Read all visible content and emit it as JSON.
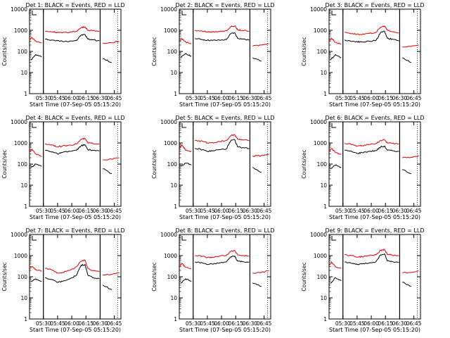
{
  "chart_data": [
    {
      "type": "line",
      "title": "Det 1: BLACK = Events, RED = LLD",
      "xlabel": "Start Time (07-Sep-05 05:15:20)",
      "ylabel": "Counts/sec",
      "yscale": "log",
      "ylim": [
        1,
        10000
      ],
      "ytick_labels": [
        "1",
        "10",
        "100",
        "1000",
        "10000"
      ],
      "xtick_labels": [
        "05:30",
        "05:45",
        "06:00",
        "06:15",
        "06:30",
        "06:45"
      ],
      "xlim": [
        "05:15:20",
        "06:52"
      ],
      "vertical_markers": [
        "05:30",
        "06:30"
      ],
      "series": [
        {
          "name": "Events",
          "color": "#000000",
          "x": [
            "05:17",
            "05:22",
            "05:28",
            "05:32",
            "05:40",
            "05:45",
            "05:50",
            "05:58",
            "06:05",
            "06:10",
            "06:14",
            "06:17",
            "06:22",
            "06:29",
            "06:33",
            "06:42"
          ],
          "values": [
            40,
            70,
            55,
            380,
            340,
            320,
            300,
            310,
            330,
            600,
            620,
            380,
            360,
            320,
            45,
            30
          ]
        },
        {
          "name": "LLD",
          "color": "#e00000",
          "x": [
            "05:15",
            "05:18",
            "05:22",
            "05:28",
            "05:32",
            "05:40",
            "05:45",
            "05:50",
            "05:58",
            "06:05",
            "06:10",
            "06:14",
            "06:17",
            "06:22",
            "06:29",
            "06:33",
            "06:42",
            "06:50"
          ],
          "values": [
            350,
            450,
            300,
            250,
            900,
            850,
            800,
            760,
            820,
            900,
            1350,
            1450,
            1000,
            950,
            900,
            250,
            260,
            300
          ]
        }
      ]
    },
    {
      "type": "line",
      "title": "Det 2: BLACK = Events, RED = LLD",
      "xlabel": "Start Time (07-Sep-05 05:15:20)",
      "ylabel": "Counts/sec",
      "yscale": "log",
      "ylim": [
        1,
        10000
      ],
      "ytick_labels": [
        "1",
        "10",
        "100",
        "1000",
        "10000"
      ],
      "xtick_labels": [
        "05:30",
        "05:45",
        "06:00",
        "06:15",
        "06:30",
        "06:45"
      ],
      "xlim": [
        "05:15:20",
        "06:52"
      ],
      "vertical_markers": [
        "05:30",
        "06:30"
      ],
      "series": [
        {
          "name": "Events",
          "color": "#000000",
          "x": [
            "05:17",
            "05:22",
            "05:28",
            "05:32",
            "05:40",
            "05:45",
            "05:50",
            "05:58",
            "06:05",
            "06:10",
            "06:14",
            "06:17",
            "06:22",
            "06:29",
            "06:33",
            "06:42"
          ],
          "values": [
            50,
            80,
            60,
            400,
            360,
            340,
            330,
            340,
            360,
            700,
            750,
            420,
            390,
            340,
            50,
            35
          ]
        },
        {
          "name": "LLD",
          "color": "#e00000",
          "x": [
            "05:15",
            "05:18",
            "05:22",
            "05:28",
            "05:32",
            "05:40",
            "05:45",
            "05:50",
            "05:58",
            "06:05",
            "06:10",
            "06:14",
            "06:17",
            "06:22",
            "06:29",
            "06:33",
            "06:42",
            "06:50"
          ],
          "values": [
            300,
            400,
            280,
            230,
            1000,
            900,
            850,
            820,
            880,
            950,
            1500,
            1600,
            1050,
            980,
            900,
            180,
            200,
            230
          ]
        }
      ]
    },
    {
      "type": "line",
      "title": "Det 3: BLACK = Events, RED = LLD",
      "xlabel": "Start Time (07-Sep-05 05:15:20)",
      "ylabel": "Counts/sec",
      "yscale": "log",
      "ylim": [
        1,
        10000
      ],
      "ytick_labels": [
        "1",
        "10",
        "100",
        "1000",
        "10000"
      ],
      "xtick_labels": [
        "05:30",
        "05:45",
        "06:00",
        "06:15",
        "06:30",
        "06:45"
      ],
      "xlim": [
        "05:15:20",
        "06:52"
      ],
      "vertical_markers": [
        "05:30",
        "06:30"
      ],
      "series": [
        {
          "name": "Events",
          "color": "#000000",
          "x": [
            "05:17",
            "05:22",
            "05:28",
            "05:32",
            "05:40",
            "05:45",
            "05:50",
            "05:58",
            "06:05",
            "06:10",
            "06:14",
            "06:17",
            "06:22",
            "06:29",
            "06:33",
            "06:42"
          ],
          "values": [
            40,
            70,
            50,
            350,
            300,
            290,
            280,
            300,
            330,
            800,
            900,
            420,
            380,
            320,
            50,
            30
          ]
        },
        {
          "name": "LLD",
          "color": "#e00000",
          "x": [
            "05:15",
            "05:18",
            "05:22",
            "05:28",
            "05:32",
            "05:40",
            "05:45",
            "05:50",
            "05:58",
            "06:05",
            "06:10",
            "06:14",
            "06:17",
            "06:22",
            "06:29",
            "06:33",
            "06:42",
            "06:50"
          ],
          "values": [
            300,
            420,
            270,
            220,
            800,
            700,
            650,
            620,
            700,
            800,
            1400,
            1600,
            1000,
            850,
            750,
            160,
            170,
            200
          ]
        }
      ]
    },
    {
      "type": "line",
      "title": "Det 4: BLACK = Events, RED = LLD",
      "xlabel": "Start Time (07-Sep-05 05:15:20)",
      "ylabel": "Counts/sec",
      "yscale": "log",
      "ylim": [
        1,
        10000
      ],
      "ytick_labels": [
        "1",
        "10",
        "100",
        "1000",
        "10000"
      ],
      "xtick_labels": [
        "05:30",
        "05:45",
        "06:00",
        "06:15",
        "06:30",
        "06:45"
      ],
      "xlim": [
        "05:15:20",
        "06:52"
      ],
      "vertical_markers": [
        "05:30",
        "06:30"
      ],
      "series": [
        {
          "name": "Events",
          "color": "#000000",
          "x": [
            "05:17",
            "05:22",
            "05:28",
            "05:32",
            "05:40",
            "05:45",
            "05:50",
            "05:58",
            "06:05",
            "06:10",
            "06:14",
            "06:17",
            "06:22",
            "06:29",
            "06:33",
            "06:42"
          ],
          "values": [
            70,
            100,
            80,
            450,
            380,
            300,
            350,
            400,
            450,
            750,
            800,
            480,
            450,
            420,
            60,
            35
          ]
        },
        {
          "name": "LLD",
          "color": "#e00000",
          "x": [
            "05:15",
            "05:18",
            "05:22",
            "05:28",
            "05:32",
            "05:40",
            "05:45",
            "05:50",
            "05:58",
            "06:05",
            "06:10",
            "06:14",
            "06:17",
            "06:22",
            "06:29",
            "06:33",
            "06:42",
            "06:50"
          ],
          "values": [
            350,
            500,
            300,
            230,
            900,
            800,
            650,
            700,
            800,
            900,
            1500,
            1600,
            1000,
            950,
            900,
            160,
            170,
            200
          ]
        }
      ]
    },
    {
      "type": "line",
      "title": "Det 5: BLACK = Events, RED = LLD",
      "xlabel": "Start Time (07-Sep-05 05:15:20)",
      "ylabel": "Counts/sec",
      "yscale": "log",
      "ylim": [
        1,
        10000
      ],
      "ytick_labels": [
        "1",
        "10",
        "100",
        "1000",
        "10000"
      ],
      "xtick_labels": [
        "05:30",
        "05:45",
        "06:00",
        "06:15",
        "06:30",
        "06:45"
      ],
      "xlim": [
        "05:15:20",
        "06:52"
      ],
      "vertical_markers": [
        "05:30",
        "06:30"
      ],
      "series": [
        {
          "name": "Events",
          "color": "#000000",
          "x": [
            "05:17",
            "05:22",
            "05:28",
            "05:32",
            "05:40",
            "05:45",
            "05:50",
            "05:58",
            "06:05",
            "06:10",
            "06:14",
            "06:17",
            "06:22",
            "06:29",
            "06:33",
            "06:42"
          ],
          "values": [
            80,
            110,
            90,
            550,
            480,
            400,
            420,
            480,
            520,
            1300,
            1400,
            650,
            600,
            550,
            70,
            40
          ]
        },
        {
          "name": "LLD",
          "color": "#e00000",
          "x": [
            "05:15",
            "05:18",
            "05:22",
            "05:28",
            "05:32",
            "05:40",
            "05:45",
            "05:50",
            "05:58",
            "06:05",
            "06:10",
            "06:14",
            "06:17",
            "06:22",
            "06:29",
            "06:33",
            "06:42",
            "06:50"
          ],
          "values": [
            500,
            800,
            450,
            400,
            1300,
            1200,
            1000,
            1050,
            1150,
            1300,
            2200,
            2400,
            1500,
            1400,
            1300,
            240,
            250,
            300
          ]
        }
      ]
    },
    {
      "type": "line",
      "title": "Det 6: BLACK = Events, RED = LLD",
      "xlabel": "Start Time (07-Sep-05 05:15:20)",
      "ylabel": "Counts/sec",
      "yscale": "log",
      "ylim": [
        1,
        10000
      ],
      "ytick_labels": [
        "1",
        "10",
        "100",
        "1000",
        "10000"
      ],
      "xtick_labels": [
        "05:30",
        "05:45",
        "06:00",
        "06:15",
        "06:30",
        "06:45"
      ],
      "xlim": [
        "05:15:20",
        "06:52"
      ],
      "vertical_markers": [
        "05:30",
        "06:30"
      ],
      "series": [
        {
          "name": "Events",
          "color": "#000000",
          "x": [
            "05:17",
            "05:22",
            "05:28",
            "05:32",
            "05:40",
            "05:45",
            "05:50",
            "05:58",
            "06:05",
            "06:10",
            "06:14",
            "06:17",
            "06:22",
            "06:29",
            "06:33",
            "06:42"
          ],
          "values": [
            60,
            90,
            70,
            450,
            380,
            320,
            350,
            400,
            430,
            650,
            700,
            450,
            430,
            400,
            55,
            35
          ]
        },
        {
          "name": "LLD",
          "color": "#e00000",
          "x": [
            "05:15",
            "05:18",
            "05:22",
            "05:28",
            "05:32",
            "05:40",
            "05:45",
            "05:50",
            "05:58",
            "06:05",
            "06:10",
            "06:14",
            "06:17",
            "06:22",
            "06:29",
            "06:33",
            "06:42",
            "06:50"
          ],
          "values": [
            380,
            550,
            350,
            300,
            950,
            850,
            700,
            750,
            850,
            950,
            1300,
            1400,
            1000,
            950,
            900,
            200,
            210,
            250
          ]
        }
      ]
    },
    {
      "type": "line",
      "title": "Det 7: BLACK = Events, RED = LLD",
      "xlabel": "Start Time (07-Sep-05 05:15:20)",
      "ylabel": "Counts/sec",
      "yscale": "log",
      "ylim": [
        1,
        10000
      ],
      "ytick_labels": [
        "1",
        "10",
        "100",
        "1000",
        "10000"
      ],
      "xtick_labels": [
        "05:30",
        "05:45",
        "06:00",
        "06:15",
        "06:30",
        "06:45"
      ],
      "xlim": [
        "05:15:20",
        "06:52"
      ],
      "vertical_markers": [
        "05:30",
        "06:30"
      ],
      "series": [
        {
          "name": "Events",
          "color": "#000000",
          "x": [
            "05:17",
            "05:22",
            "05:28",
            "05:32",
            "05:40",
            "05:45",
            "05:50",
            "05:58",
            "06:05",
            "06:10",
            "06:14",
            "06:17",
            "06:22",
            "06:29",
            "06:33",
            "06:42"
          ],
          "values": [
            60,
            80,
            60,
            90,
            70,
            55,
            60,
            80,
            120,
            350,
            380,
            120,
            90,
            80,
            40,
            25
          ]
        },
        {
          "name": "LLD",
          "color": "#e00000",
          "x": [
            "05:15",
            "05:18",
            "05:22",
            "05:28",
            "05:32",
            "05:40",
            "05:45",
            "05:50",
            "05:58",
            "06:05",
            "06:10",
            "06:14",
            "06:17",
            "06:22",
            "06:29",
            "06:33",
            "06:42",
            "06:50"
          ],
          "values": [
            250,
            300,
            220,
            180,
            250,
            200,
            150,
            160,
            200,
            300,
            550,
            600,
            250,
            200,
            180,
            120,
            130,
            150
          ]
        }
      ]
    },
    {
      "type": "line",
      "title": "Det 8: BLACK = Events, RED = LLD",
      "xlabel": "Start Time (07-Sep-05 05:15:20)",
      "ylabel": "Counts/sec",
      "yscale": "log",
      "ylim": [
        1,
        10000
      ],
      "ytick_labels": [
        "1",
        "10",
        "100",
        "1000",
        "10000"
      ],
      "xtick_labels": [
        "05:30",
        "05:45",
        "06:00",
        "06:15",
        "06:30",
        "06:45"
      ],
      "xlim": [
        "05:15:20",
        "06:52"
      ],
      "vertical_markers": [
        "05:30",
        "06:30"
      ],
      "series": [
        {
          "name": "Events",
          "color": "#000000",
          "x": [
            "05:17",
            "05:22",
            "05:28",
            "05:32",
            "05:40",
            "05:45",
            "05:50",
            "05:58",
            "06:05",
            "06:10",
            "06:14",
            "06:17",
            "06:22",
            "06:29",
            "06:33",
            "06:42"
          ],
          "values": [
            50,
            80,
            60,
            500,
            450,
            380,
            400,
            450,
            500,
            900,
            950,
            550,
            520,
            500,
            50,
            35
          ]
        },
        {
          "name": "LLD",
          "color": "#e00000",
          "x": [
            "05:15",
            "05:18",
            "05:22",
            "05:28",
            "05:32",
            "05:40",
            "05:45",
            "05:50",
            "05:58",
            "06:05",
            "06:10",
            "06:14",
            "06:17",
            "06:22",
            "06:29",
            "06:33",
            "06:42",
            "06:50"
          ],
          "values": [
            300,
            420,
            280,
            230,
            1000,
            950,
            800,
            850,
            950,
            1050,
            1600,
            1700,
            1100,
            1000,
            950,
            150,
            160,
            190
          ]
        }
      ]
    },
    {
      "type": "line",
      "title": "Det 9: BLACK = Events, RED = LLD",
      "xlabel": "Start Time (07-Sep-05 05:15:20)",
      "ylabel": "Counts/sec",
      "yscale": "log",
      "ylim": [
        1,
        10000
      ],
      "ytick_labels": [
        "1",
        "10",
        "100",
        "1000",
        "10000"
      ],
      "xtick_labels": [
        "05:30",
        "05:45",
        "06:00",
        "06:15",
        "06:30",
        "06:45"
      ],
      "xlim": [
        "05:15:20",
        "06:52"
      ],
      "vertical_markers": [
        "05:30",
        "06:30"
      ],
      "series": [
        {
          "name": "Events",
          "color": "#000000",
          "x": [
            "05:17",
            "05:22",
            "05:28",
            "05:32",
            "05:40",
            "05:45",
            "05:50",
            "05:58",
            "06:05",
            "06:10",
            "06:14",
            "06:17",
            "06:22",
            "06:29",
            "06:33",
            "06:42"
          ],
          "values": [
            50,
            90,
            65,
            500,
            420,
            380,
            400,
            450,
            520,
            1100,
            1200,
            560,
            520,
            480,
            55,
            35
          ]
        },
        {
          "name": "LLD",
          "color": "#e00000",
          "x": [
            "05:15",
            "05:18",
            "05:22",
            "05:28",
            "05:32",
            "05:40",
            "05:45",
            "05:50",
            "05:58",
            "06:05",
            "06:10",
            "06:14",
            "06:17",
            "06:22",
            "06:29",
            "06:33",
            "06:42",
            "06:50"
          ],
          "values": [
            320,
            500,
            300,
            250,
            1100,
            1000,
            850,
            900,
            1000,
            1100,
            1800,
            1900,
            1150,
            1050,
            1000,
            150,
            160,
            190
          ]
        }
      ]
    }
  ]
}
